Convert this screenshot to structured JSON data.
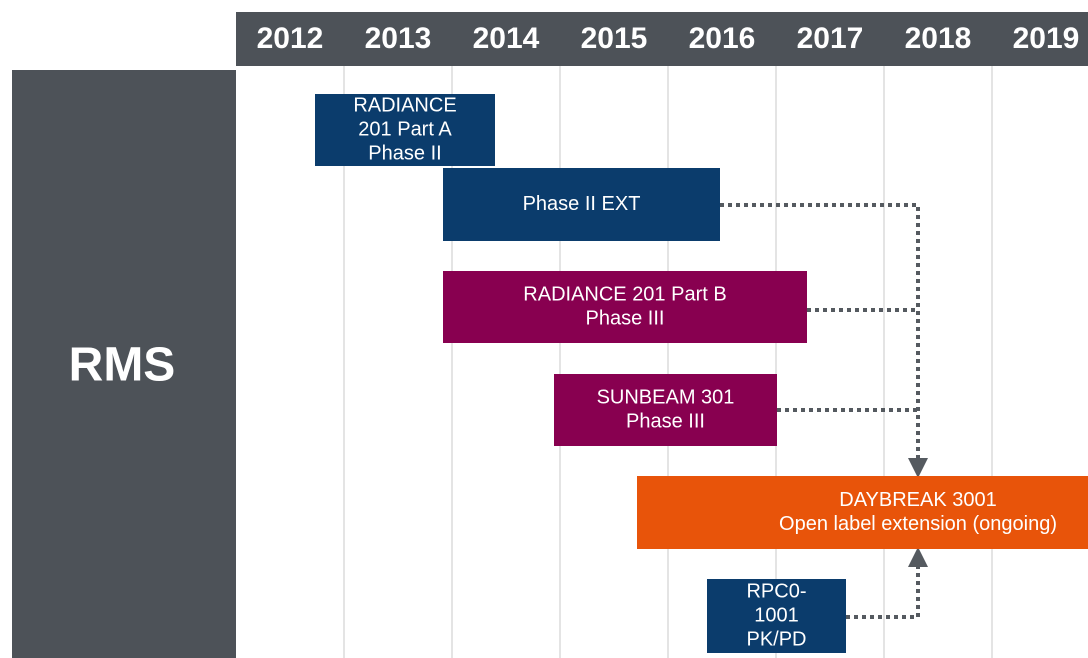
{
  "header": {
    "years": [
      "2012",
      "2013",
      "2014",
      "2015",
      "2016",
      "2017",
      "2018",
      "2019"
    ]
  },
  "side_label": "RMS",
  "boxes": [
    {
      "lines": [
        "RADIANCE",
        "201 Part A",
        "Phase II"
      ]
    },
    {
      "lines": [
        "Phase II EXT"
      ]
    },
    {
      "lines": [
        "RADIANCE 201 Part B",
        "Phase III"
      ]
    },
    {
      "lines": [
        "SUNBEAM 301",
        "Phase III"
      ]
    },
    {
      "lines": [
        "DAYBREAK 3001",
        "Open label extension (ongoing)"
      ]
    },
    {
      "lines": [
        "RPC0-",
        "1001",
        "PK/PD"
      ]
    }
  ]
}
